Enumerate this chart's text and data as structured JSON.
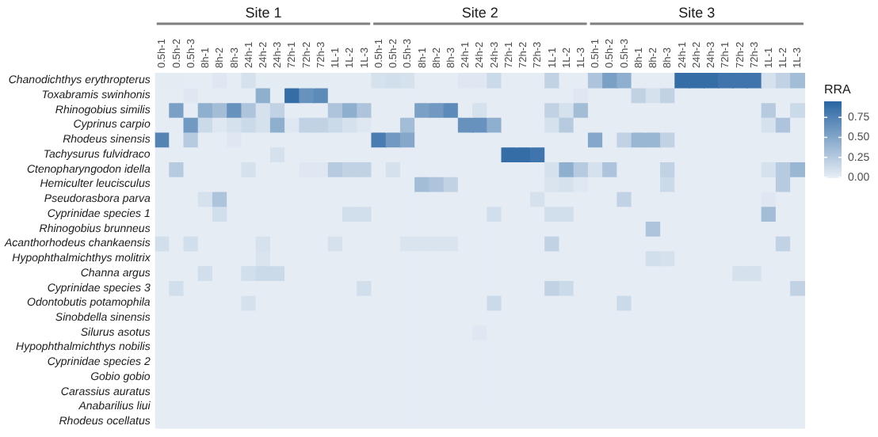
{
  "chart_data": {
    "type": "heatmap",
    "categories": [
      "0.5h-1",
      "0.5h-2",
      "0.5h-3",
      "8h-1",
      "8h-2",
      "8h-3",
      "24h-1",
      "24h-2",
      "24h-3",
      "72h-1",
      "72h-2",
      "72h-3",
      "1L-1",
      "1L-2",
      "1L-3",
      "0.5h-1",
      "0.5h-2",
      "0.5h-3",
      "8h-1",
      "8h-2",
      "8h-3",
      "24h-1",
      "24h-2",
      "24h-3",
      "72h-1",
      "72h-2",
      "72h-3",
      "1L-1",
      "1L-2",
      "1L-3",
      "0.5h-1",
      "0.5h-2",
      "0.5h-3",
      "8h-1",
      "8h-2",
      "8h-3",
      "24h-1",
      "24h-2",
      "24h-3",
      "72h-1",
      "72h-2",
      "72h-3",
      "1L-1",
      "1L-2",
      "1L-3"
    ],
    "y_categories": [
      "Chanodichthys erythropterus",
      "Toxabramis swinhonis",
      "Rhinogobius similis",
      "Cyprinus carpio",
      "Rhodeus sinensis",
      "Tachysurus fulvidraco",
      "Ctenopharyngodon idella",
      "Hemiculter leucisculus",
      "Pseudorasbora parva",
      "Cyprinidae species 1",
      "Rhinogobius brunneus",
      "Acanthorhodeus chankaensis",
      "Hypophthalmichthys molitrix",
      "Channa argus",
      "Cyprinidae species 3",
      "Odontobutis potamophila",
      "Sinobdella sinensis",
      "Silurus asotus",
      "Hypophthalmichthys nobilis",
      "Cyprinidae species 2",
      "Gobio gobio",
      "Carassius auratus",
      "Anabarilius liui",
      "Rhodeus ocellatus"
    ],
    "cells": [
      [
        0.03,
        0.03,
        0.02,
        0.02,
        0.05,
        0.02,
        0.1,
        0.03,
        0.03,
        0.03,
        0.03,
        0.03,
        0.02,
        0.02,
        0.02,
        0.1,
        0.12,
        0.1,
        0.02,
        0.02,
        0.02,
        0.05,
        0.05,
        0.15,
        0.02,
        0.02,
        0.02,
        0.2,
        0.02,
        0.02,
        0.3,
        0.55,
        0.45,
        0.02,
        0.02,
        0.02,
        0.9,
        0.9,
        0.9,
        0.85,
        0.85,
        0.85,
        0.1,
        0.2,
        0.35
      ],
      [
        0.02,
        0.02,
        0.05,
        0.02,
        0.02,
        0.02,
        0.02,
        0.45,
        0.02,
        0.9,
        0.65,
        0.7,
        0.02,
        0.02,
        0.02,
        0.02,
        0.02,
        0.02,
        0.02,
        0.02,
        0.02,
        0.02,
        0.02,
        0.02,
        0.02,
        0.02,
        0.02,
        0.02,
        0.02,
        0.05,
        0.02,
        0.02,
        0.02,
        0.2,
        0.1,
        0.2,
        0.02,
        0.02,
        0.02,
        0.02,
        0.02,
        0.02,
        0.02,
        0.02,
        0.02
      ],
      [
        0.02,
        0.55,
        0.02,
        0.45,
        0.35,
        0.65,
        0.3,
        0.1,
        0.2,
        0.02,
        0.02,
        0.02,
        0.3,
        0.45,
        0.3,
        0.02,
        0.02,
        0.02,
        0.55,
        0.6,
        0.7,
        0.02,
        0.1,
        0.02,
        0.02,
        0.02,
        0.02,
        0.2,
        0.1,
        0.35,
        0.02,
        0.02,
        0.02,
        0.02,
        0.02,
        0.02,
        0.02,
        0.02,
        0.02,
        0.02,
        0.02,
        0.02,
        0.25,
        0.02,
        0.15
      ],
      [
        0.02,
        0.02,
        0.6,
        0.15,
        0.05,
        0.1,
        0.15,
        0.1,
        0.45,
        0.05,
        0.2,
        0.2,
        0.15,
        0.1,
        0.05,
        0.02,
        0.02,
        0.35,
        0.02,
        0.02,
        0.02,
        0.65,
        0.65,
        0.45,
        0.02,
        0.02,
        0.02,
        0.1,
        0.25,
        0.02,
        0.02,
        0.02,
        0.02,
        0.02,
        0.02,
        0.02,
        0.02,
        0.02,
        0.02,
        0.02,
        0.02,
        0.02,
        0.1,
        0.3,
        0.02
      ],
      [
        0.75,
        0.02,
        0.25,
        0.02,
        0.02,
        0.05,
        0.02,
        0.02,
        0.02,
        0.02,
        0.02,
        0.02,
        0.02,
        0.02,
        0.02,
        0.8,
        0.6,
        0.5,
        0.02,
        0.02,
        0.02,
        0.02,
        0.02,
        0.02,
        0.02,
        0.02,
        0.02,
        0.02,
        0.02,
        0.02,
        0.5,
        0.02,
        0.2,
        0.4,
        0.4,
        0.2,
        0.02,
        0.02,
        0.02,
        0.02,
        0.02,
        0.02,
        0.02,
        0.02,
        0.02
      ],
      [
        0.02,
        0.02,
        0.02,
        0.02,
        0.02,
        0.02,
        0.02,
        0.02,
        0.1,
        0.02,
        0.02,
        0.02,
        0.02,
        0.02,
        0.02,
        0.02,
        0.02,
        0.02,
        0.02,
        0.02,
        0.02,
        0.02,
        0.02,
        0.02,
        0.9,
        0.9,
        0.85,
        0.02,
        0.02,
        0.02,
        0.02,
        0.02,
        0.02,
        0.02,
        0.02,
        0.02,
        0.02,
        0.02,
        0.02,
        0.02,
        0.02,
        0.02,
        0.02,
        0.02,
        0.02
      ],
      [
        0.02,
        0.25,
        0.02,
        0.02,
        0.02,
        0.02,
        0.1,
        0.02,
        0.02,
        0.02,
        0.05,
        0.05,
        0.25,
        0.2,
        0.2,
        0.02,
        0.1,
        0.02,
        0.02,
        0.02,
        0.02,
        0.02,
        0.02,
        0.02,
        0.02,
        0.02,
        0.02,
        0.1,
        0.45,
        0.25,
        0.1,
        0.3,
        0.02,
        0.02,
        0.02,
        0.2,
        0.02,
        0.02,
        0.02,
        0.02,
        0.02,
        0.02,
        0.1,
        0.25,
        0.4
      ],
      [
        0.02,
        0.02,
        0.02,
        0.02,
        0.02,
        0.02,
        0.02,
        0.02,
        0.02,
        0.02,
        0.02,
        0.02,
        0.02,
        0.02,
        0.02,
        0.02,
        0.02,
        0.02,
        0.35,
        0.3,
        0.2,
        0.02,
        0.02,
        0.02,
        0.02,
        0.02,
        0.02,
        0.08,
        0.1,
        0.05,
        0.02,
        0.02,
        0.02,
        0.02,
        0.02,
        0.15,
        0.02,
        0.02,
        0.02,
        0.02,
        0.02,
        0.02,
        0.02,
        0.25,
        0.02
      ],
      [
        0.02,
        0.02,
        0.02,
        0.1,
        0.3,
        0.02,
        0.02,
        0.02,
        0.02,
        0.02,
        0.02,
        0.02,
        0.02,
        0.02,
        0.02,
        0.02,
        0.02,
        0.02,
        0.02,
        0.02,
        0.02,
        0.02,
        0.02,
        0.02,
        0.02,
        0.02,
        0.1,
        0.02,
        0.02,
        0.02,
        0.02,
        0.02,
        0.2,
        0.02,
        0.02,
        0.02,
        0.02,
        0.02,
        0.02,
        0.02,
        0.02,
        0.02,
        0.05,
        0.02,
        0.02
      ],
      [
        0.02,
        0.02,
        0.02,
        0.02,
        0.12,
        0.02,
        0.02,
        0.02,
        0.02,
        0.02,
        0.02,
        0.02,
        0.02,
        0.12,
        0.12,
        0.02,
        0.02,
        0.02,
        0.02,
        0.02,
        0.02,
        0.02,
        0.02,
        0.12,
        0.02,
        0.02,
        0.02,
        0.12,
        0.12,
        0.02,
        0.02,
        0.02,
        0.02,
        0.02,
        0.02,
        0.02,
        0.02,
        0.02,
        0.02,
        0.02,
        0.02,
        0.02,
        0.35,
        0.02,
        0.02
      ],
      [
        0.02,
        0.02,
        0.02,
        0.02,
        0.02,
        0.02,
        0.02,
        0.02,
        0.02,
        0.02,
        0.02,
        0.02,
        0.02,
        0.02,
        0.02,
        0.02,
        0.02,
        0.02,
        0.02,
        0.02,
        0.02,
        0.02,
        0.02,
        0.02,
        0.02,
        0.02,
        0.02,
        0.02,
        0.02,
        0.02,
        0.02,
        0.02,
        0.02,
        0.02,
        0.3,
        0.02,
        0.02,
        0.02,
        0.02,
        0.02,
        0.02,
        0.02,
        0.02,
        0.02,
        0.02
      ],
      [
        0.12,
        0.02,
        0.12,
        0.02,
        0.02,
        0.02,
        0.02,
        0.1,
        0.02,
        0.02,
        0.02,
        0.02,
        0.1,
        0.02,
        0.02,
        0.02,
        0.02,
        0.08,
        0.08,
        0.08,
        0.08,
        0.02,
        0.02,
        0.02,
        0.02,
        0.02,
        0.02,
        0.2,
        0.02,
        0.02,
        0.02,
        0.02,
        0.02,
        0.02,
        0.02,
        0.02,
        0.02,
        0.02,
        0.02,
        0.02,
        0.02,
        0.02,
        0.02,
        0.2,
        0.02
      ],
      [
        0.02,
        0.02,
        0.02,
        0.02,
        0.02,
        0.02,
        0.02,
        0.08,
        0.02,
        0.02,
        0.02,
        0.02,
        0.02,
        0.02,
        0.02,
        0.02,
        0.02,
        0.02,
        0.02,
        0.02,
        0.02,
        0.02,
        0.02,
        0.02,
        0.02,
        0.02,
        0.02,
        0.02,
        0.02,
        0.02,
        0.02,
        0.02,
        0.02,
        0.02,
        0.12,
        0.1,
        0.02,
        0.02,
        0.02,
        0.02,
        0.02,
        0.02,
        0.02,
        0.02,
        0.02
      ],
      [
        0.02,
        0.02,
        0.02,
        0.12,
        0.02,
        0.02,
        0.12,
        0.15,
        0.15,
        0.02,
        0.02,
        0.02,
        0.02,
        0.02,
        0.02,
        0.02,
        0.02,
        0.02,
        0.02,
        0.02,
        0.02,
        0.02,
        0.02,
        0.02,
        0.02,
        0.02,
        0.02,
        0.02,
        0.02,
        0.02,
        0.02,
        0.02,
        0.02,
        0.02,
        0.02,
        0.02,
        0.02,
        0.02,
        0.02,
        0.02,
        0.1,
        0.1,
        0.02,
        0.02,
        0.02
      ],
      [
        0.02,
        0.12,
        0.02,
        0.02,
        0.02,
        0.02,
        0.02,
        0.02,
        0.02,
        0.02,
        0.02,
        0.02,
        0.02,
        0.02,
        0.12,
        0.02,
        0.02,
        0.02,
        0.02,
        0.02,
        0.02,
        0.02,
        0.02,
        0.02,
        0.02,
        0.02,
        0.02,
        0.2,
        0.15,
        0.02,
        0.02,
        0.02,
        0.02,
        0.02,
        0.02,
        0.02,
        0.02,
        0.02,
        0.02,
        0.02,
        0.02,
        0.02,
        0.02,
        0.02,
        0.2
      ],
      [
        0.02,
        0.02,
        0.02,
        0.02,
        0.02,
        0.02,
        0.1,
        0.02,
        0.02,
        0.02,
        0.02,
        0.02,
        0.02,
        0.02,
        0.02,
        0.02,
        0.02,
        0.02,
        0.02,
        0.02,
        0.02,
        0.02,
        0.02,
        0.15,
        0.02,
        0.02,
        0.02,
        0.02,
        0.02,
        0.02,
        0.02,
        0.02,
        0.15,
        0.02,
        0.02,
        0.02,
        0.02,
        0.02,
        0.02,
        0.02,
        0.02,
        0.02,
        0.02,
        0.02,
        0.02
      ],
      [
        0.02,
        0.02,
        0.02,
        0.02,
        0.02,
        0.02,
        0.02,
        0.02,
        0.02,
        0.02,
        0.02,
        0.02,
        0.02,
        0.02,
        0.02,
        0.02,
        0.02,
        0.02,
        0.02,
        0.02,
        0.02,
        0.02,
        0.02,
        0.02,
        0.02,
        0.02,
        0.02,
        0.02,
        0.02,
        0.02,
        0.02,
        0.02,
        0.02,
        0.02,
        0.02,
        0.02,
        0.02,
        0.02,
        0.02,
        0.02,
        0.02,
        0.02,
        0.02,
        0.02,
        0.02
      ],
      [
        0.02,
        0.02,
        0.02,
        0.02,
        0.02,
        0.02,
        0.02,
        0.02,
        0.02,
        0.02,
        0.02,
        0.02,
        0.02,
        0.02,
        0.02,
        0.02,
        0.02,
        0.02,
        0.02,
        0.02,
        0.02,
        0.02,
        0.05,
        0.02,
        0.02,
        0.02,
        0.02,
        0.02,
        0.02,
        0.02,
        0.02,
        0.02,
        0.02,
        0.02,
        0.02,
        0.02,
        0.02,
        0.02,
        0.02,
        0.02,
        0.02,
        0.02,
        0.02,
        0.02,
        0.02
      ],
      [
        0.02,
        0.02,
        0.02,
        0.02,
        0.02,
        0.02,
        0.02,
        0.02,
        0.02,
        0.02,
        0.02,
        0.02,
        0.02,
        0.02,
        0.02,
        0.02,
        0.02,
        0.02,
        0.02,
        0.02,
        0.02,
        0.02,
        0.02,
        0.02,
        0.02,
        0.02,
        0.02,
        0.02,
        0.02,
        0.02,
        0.02,
        0.02,
        0.02,
        0.02,
        0.02,
        0.02,
        0.02,
        0.02,
        0.02,
        0.02,
        0.02,
        0.02,
        0.02,
        0.02,
        0.02
      ],
      [
        0.02,
        0.02,
        0.02,
        0.02,
        0.02,
        0.02,
        0.02,
        0.02,
        0.02,
        0.02,
        0.02,
        0.02,
        0.02,
        0.02,
        0.02,
        0.02,
        0.02,
        0.02,
        0.02,
        0.02,
        0.02,
        0.02,
        0.02,
        0.02,
        0.02,
        0.02,
        0.02,
        0.02,
        0.02,
        0.02,
        0.02,
        0.02,
        0.02,
        0.02,
        0.02,
        0.02,
        0.02,
        0.02,
        0.02,
        0.02,
        0.02,
        0.02,
        0.02,
        0.02,
        0.02
      ],
      [
        0.02,
        0.02,
        0.02,
        0.02,
        0.02,
        0.02,
        0.02,
        0.02,
        0.02,
        0.02,
        0.02,
        0.02,
        0.02,
        0.02,
        0.02,
        0.02,
        0.02,
        0.02,
        0.02,
        0.02,
        0.02,
        0.02,
        0.02,
        0.02,
        0.02,
        0.02,
        0.02,
        0.02,
        0.02,
        0.02,
        0.02,
        0.02,
        0.02,
        0.02,
        0.02,
        0.02,
        0.02,
        0.02,
        0.02,
        0.02,
        0.02,
        0.02,
        0.02,
        0.02,
        0.02
      ],
      [
        0.02,
        0.02,
        0.02,
        0.02,
        0.02,
        0.02,
        0.02,
        0.02,
        0.02,
        0.02,
        0.02,
        0.02,
        0.02,
        0.02,
        0.02,
        0.02,
        0.02,
        0.02,
        0.02,
        0.02,
        0.02,
        0.02,
        0.02,
        0.02,
        0.02,
        0.02,
        0.02,
        0.02,
        0.02,
        0.02,
        0.02,
        0.02,
        0.02,
        0.02,
        0.02,
        0.02,
        0.02,
        0.02,
        0.02,
        0.02,
        0.02,
        0.02,
        0.02,
        0.02,
        0.02
      ],
      [
        0.02,
        0.02,
        0.02,
        0.02,
        0.02,
        0.02,
        0.02,
        0.02,
        0.02,
        0.02,
        0.02,
        0.02,
        0.02,
        0.02,
        0.02,
        0.02,
        0.02,
        0.02,
        0.02,
        0.02,
        0.02,
        0.02,
        0.02,
        0.02,
        0.02,
        0.02,
        0.02,
        0.02,
        0.02,
        0.02,
        0.02,
        0.02,
        0.02,
        0.02,
        0.02,
        0.02,
        0.02,
        0.02,
        0.02,
        0.02,
        0.02,
        0.02,
        0.02,
        0.02,
        0.02
      ],
      [
        0.02,
        0.02,
        0.02,
        0.02,
        0.02,
        0.02,
        0.02,
        0.02,
        0.02,
        0.02,
        0.02,
        0.02,
        0.02,
        0.02,
        0.02,
        0.02,
        0.02,
        0.02,
        0.02,
        0.02,
        0.02,
        0.02,
        0.02,
        0.02,
        0.02,
        0.02,
        0.02,
        0.02,
        0.02,
        0.02,
        0.02,
        0.02,
        0.02,
        0.02,
        0.02,
        0.02,
        0.02,
        0.02,
        0.02,
        0.02,
        0.02,
        0.02,
        0.02,
        0.02,
        0.02
      ]
    ],
    "clabel": "RRA",
    "clim": [
      0,
      0.95
    ],
    "cticks": [
      {
        "value": 0,
        "label": "0.00"
      },
      {
        "value": 0.25,
        "label": "0.25"
      },
      {
        "value": 0.5,
        "label": "0.50"
      },
      {
        "value": 0.75,
        "label": "0.75"
      }
    ],
    "annotations": [
      "Site 1",
      "Site 2",
      "Site 3"
    ]
  }
}
